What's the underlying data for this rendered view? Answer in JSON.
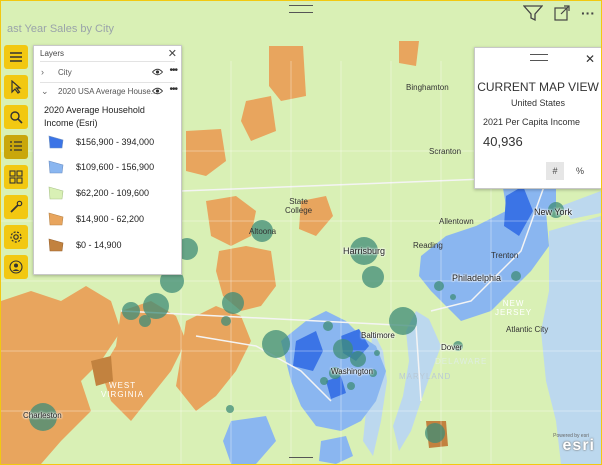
{
  "header": {
    "title": "ast Year Sales by City",
    "icons": [
      "filter-icon",
      "focus-mode-icon",
      "more-options-icon"
    ],
    "more_glyph": "···"
  },
  "toolbar": {
    "tools": [
      "menu-icon",
      "select-icon",
      "search-icon",
      "layers-icon",
      "infographics-icon",
      "analysis-icon",
      "settings-icon",
      "account-icon"
    ],
    "active": "layers-icon"
  },
  "layers_panel": {
    "title": "Layers",
    "close_glyph": "✕",
    "layers": [
      {
        "name": "City",
        "expanded": false,
        "chevron": "›",
        "more": "•••"
      },
      {
        "name": "2020 USA Average House...",
        "expanded": true,
        "chevron": "⌄",
        "more": "•••"
      }
    ],
    "legend_title": "2020 Average Household Income (Esri)",
    "legend": [
      {
        "label": "$156,900 - 394,000",
        "color": "#3b74e6"
      },
      {
        "label": "$109,600 - 156,900",
        "color": "#8ab6f0"
      },
      {
        "label": "$62,200 - 109,600",
        "color": "#d9f0b5"
      },
      {
        "label": "$14,900 - 62,200",
        "color": "#e8a55e"
      },
      {
        "label": "$0 - 14,900",
        "color": "#c2823f"
      }
    ]
  },
  "map_view": {
    "title": "CURRENT MAP VIEW",
    "region": "United States",
    "metric": "2021 Per Capita Income",
    "value": "40,936",
    "close_glyph": "✕",
    "num_button": "#",
    "pct_button": "%"
  },
  "map": {
    "colors": {
      "base": "#d9f0b5",
      "low": "#e8a55e",
      "lowest": "#c2823f",
      "high": "#8ab6f0",
      "highest": "#3b74e6",
      "bubble": "#3f8c78",
      "water": "#bcd8ee"
    },
    "cities": [
      {
        "name": "Binghamton",
        "style": "city"
      },
      {
        "name": "Scranton",
        "style": "city"
      },
      {
        "name": "New York",
        "style": "halo"
      },
      {
        "name": "Allentown",
        "style": "city"
      },
      {
        "name": "Reading",
        "style": "city"
      },
      {
        "name": "State\nCollege",
        "style": "city"
      },
      {
        "name": "Altoona",
        "style": "city"
      },
      {
        "name": "Harrisburg",
        "style": "halo"
      },
      {
        "name": "Trenton",
        "style": "city"
      },
      {
        "name": "Philadelphia",
        "style": "halo"
      },
      {
        "name": "Baltimore",
        "style": "halo"
      },
      {
        "name": "Atlantic City",
        "style": "city"
      },
      {
        "name": "Dover",
        "style": "halo"
      },
      {
        "name": "Washington",
        "style": "halo"
      },
      {
        "name": "Charleston",
        "style": "halo"
      }
    ],
    "states": [
      "NEW\nJERSEY",
      "DELAWARE",
      "MARYLAND",
      "WEST\nVIRGINIA"
    ],
    "attribution": "Powered by esri",
    "logo": "esri"
  }
}
